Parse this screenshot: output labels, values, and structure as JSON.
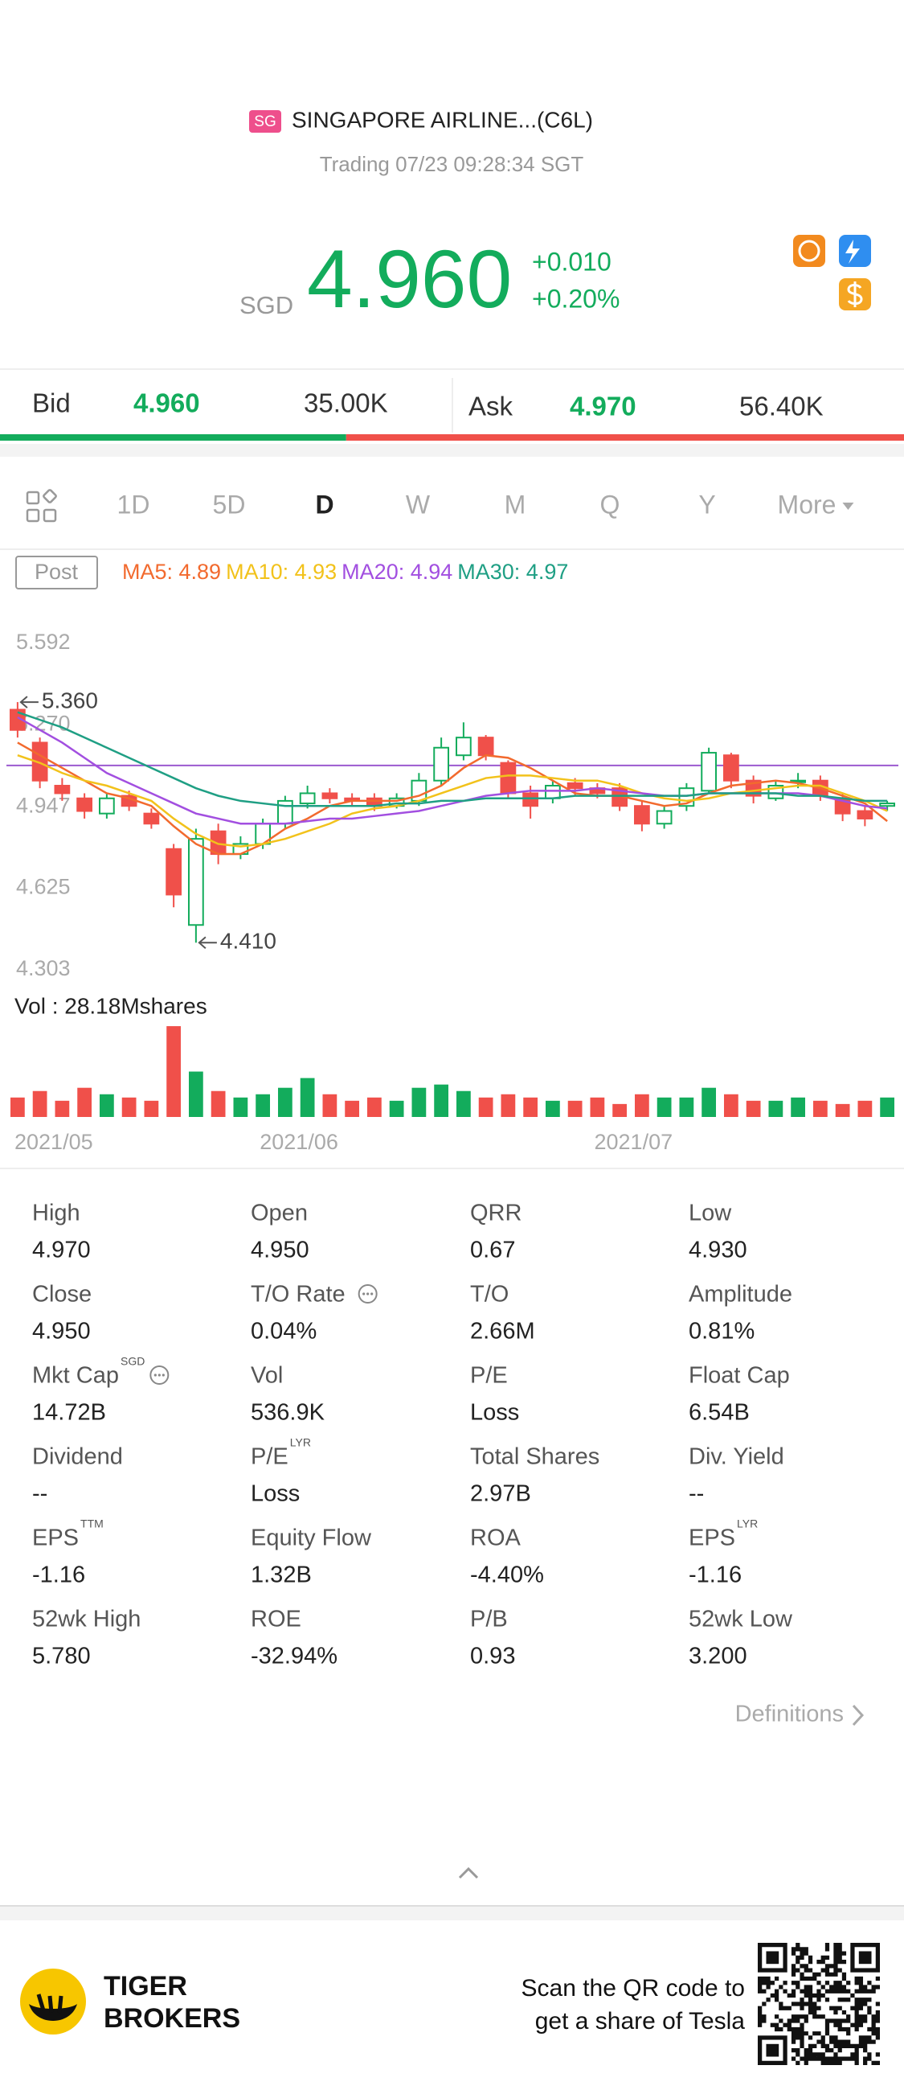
{
  "header": {
    "market_badge": "SG",
    "name": "SINGAPORE AIRLINE...(C6L)",
    "status": "Trading 07/23 09:28:34 SGT",
    "currency": "SGD",
    "price": "4.960",
    "change": "+0.010",
    "change_pct": "+0.20%"
  },
  "quote": {
    "bid_label": "Bid",
    "bid": "4.960",
    "bid_size": {
      "value": 35000,
      "label": "35.00K"
    },
    "ask_label": "Ask",
    "ask": "4.970",
    "ask_size": {
      "value": 56400,
      "label": "56.40K"
    }
  },
  "tabs": [
    "1D",
    "5D",
    "D",
    "W",
    "M",
    "Q",
    "Y",
    "More"
  ],
  "active_tab": 2,
  "post_badge": "Post",
  "chart_data": [
    {
      "type": "candlestick",
      "categories": [
        "2021/05",
        null,
        null,
        null,
        null,
        null,
        null,
        null,
        null,
        null,
        null,
        "2021/06",
        null,
        null,
        null,
        null,
        null,
        null,
        null,
        null,
        null,
        null,
        null,
        null,
        null,
        null,
        "2021/07",
        null,
        null,
        null,
        null,
        null,
        null,
        null,
        null,
        null,
        null,
        null,
        null,
        null
      ],
      "open": [
        5.33,
        5.2,
        5.03,
        4.98,
        4.92,
        4.99,
        4.92,
        4.78,
        4.48,
        4.85,
        4.76,
        4.8,
        4.88,
        4.96,
        5.0,
        4.98,
        4.98,
        4.95,
        4.97,
        5.05,
        5.15,
        5.22,
        5.12,
        5.0,
        4.98,
        5.04,
        5.02,
        5.02,
        4.95,
        4.88,
        4.95,
        5.01,
        5.15,
        5.05,
        4.98,
        5.05,
        5.05,
        4.98,
        4.93,
        4.95
      ],
      "high": [
        5.36,
        5.22,
        5.06,
        5.0,
        5.0,
        5.01,
        4.94,
        4.8,
        4.86,
        4.88,
        4.83,
        4.9,
        4.99,
        5.03,
        5.02,
        5.0,
        5.0,
        5.0,
        5.08,
        5.22,
        5.28,
        5.23,
        5.13,
        5.03,
        5.05,
        5.06,
        5.04,
        5.04,
        4.97,
        4.95,
        5.04,
        5.18,
        5.16,
        5.07,
        5.05,
        5.08,
        5.07,
        5.0,
        4.95,
        4.97
      ],
      "low": [
        5.22,
        5.02,
        4.97,
        4.9,
        4.9,
        4.93,
        4.86,
        4.55,
        4.41,
        4.72,
        4.74,
        4.78,
        4.86,
        4.94,
        4.96,
        4.95,
        4.93,
        4.94,
        4.95,
        5.03,
        5.13,
        5.13,
        4.98,
        4.9,
        4.96,
        4.99,
        4.98,
        4.93,
        4.85,
        4.86,
        4.93,
        5.0,
        5.02,
        4.96,
        4.97,
        5.02,
        4.97,
        4.89,
        4.87,
        4.93
      ],
      "close": [
        5.25,
        5.05,
        5.0,
        4.93,
        4.98,
        4.95,
        4.88,
        4.6,
        4.82,
        4.76,
        4.8,
        4.88,
        4.97,
        5.0,
        4.98,
        4.97,
        4.95,
        4.98,
        5.05,
        5.18,
        5.22,
        5.15,
        5.0,
        4.95,
        5.03,
        5.02,
        5.0,
        4.95,
        4.88,
        4.93,
        5.02,
        5.16,
        5.05,
        4.99,
        5.03,
        5.05,
        4.99,
        4.92,
        4.9,
        4.96
      ],
      "up_color": "#13ac5c",
      "down_color": "#f0504a",
      "series": [
        {
          "name": "MA5: 4.89",
          "color": "#f26a2e",
          "values": [
            5.2,
            5.15,
            5.1,
            5.05,
            5.0,
            4.98,
            4.95,
            4.87,
            4.8,
            4.76,
            4.76,
            4.8,
            4.86,
            4.9,
            4.95,
            4.97,
            4.97,
            4.97,
            4.99,
            5.03,
            5.1,
            5.15,
            5.14,
            5.1,
            5.05,
            5.0,
            4.99,
            4.99,
            4.97,
            4.95,
            4.96,
            5.0,
            5.03,
            5.04,
            5.05,
            5.04,
            5.02,
            4.99,
            4.96,
            4.89
          ]
        },
        {
          "name": "MA10: 4.93",
          "color": "#f2c21b",
          "values": [
            5.15,
            5.12,
            5.08,
            5.05,
            5.03,
            5.0,
            4.97,
            4.9,
            4.84,
            4.8,
            4.79,
            4.8,
            4.82,
            4.85,
            4.88,
            4.92,
            4.94,
            4.95,
            4.97,
            5.0,
            5.03,
            5.06,
            5.07,
            5.07,
            5.06,
            5.05,
            5.05,
            5.03,
            5.0,
            4.98,
            4.97,
            4.98,
            5.0,
            5.01,
            5.02,
            5.03,
            5.03,
            5.0,
            4.97,
            4.93
          ]
        },
        {
          "name": "MA20: 4.94",
          "color": "#a24fe0",
          "values": [
            5.3,
            5.25,
            5.2,
            5.14,
            5.08,
            5.04,
            5.0,
            4.96,
            4.92,
            4.9,
            4.88,
            4.88,
            4.88,
            4.89,
            4.9,
            4.9,
            4.91,
            4.92,
            4.93,
            4.95,
            4.97,
            4.99,
            5.0,
            5.01,
            5.01,
            5.01,
            5.02,
            5.01,
            5.0,
            4.99,
            4.99,
            5.0,
            5.0,
            5.0,
            5.0,
            5.0,
            4.99,
            4.97,
            4.95,
            4.94
          ]
        },
        {
          "name": "MA30: 4.97",
          "color": "#1f9f84",
          "values": [
            5.32,
            5.29,
            5.26,
            5.22,
            5.18,
            5.14,
            5.1,
            5.06,
            5.02,
            4.99,
            4.97,
            4.96,
            4.95,
            4.95,
            4.95,
            4.95,
            4.95,
            4.96,
            4.96,
            4.97,
            4.97,
            4.98,
            4.98,
            4.98,
            4.98,
            4.99,
            4.99,
            4.99,
            4.99,
            4.99,
            4.99,
            5.0,
            5.0,
            5.0,
            5.0,
            4.99,
            4.99,
            4.98,
            4.97,
            4.97
          ]
        }
      ],
      "ylim": [
        4.303,
        5.592
      ],
      "yticks": [
        5.592,
        {
          "value": 5.27,
          "label": "5.270"
        },
        4.947,
        4.625,
        4.303
      ],
      "grid": false,
      "hline": 5.11,
      "hline_color": "#9b59d0",
      "annotations": [
        {
          "index": 0,
          "value": 5.36,
          "label": "5.360"
        },
        {
          "index": 8,
          "value": 4.41,
          "label": "4.410"
        }
      ]
    },
    {
      "type": "bar",
      "title": "Vol  : 28.18Mshares",
      "values": [
        6,
        8,
        5,
        9,
        7,
        6,
        5,
        28,
        14,
        8,
        6,
        7,
        9,
        12,
        7,
        5,
        6,
        5,
        9,
        10,
        8,
        6,
        7,
        6,
        5,
        5,
        6,
        4,
        7,
        6,
        6,
        9,
        7,
        5,
        5,
        6,
        5,
        4,
        5,
        6
      ],
      "ylim": [
        0,
        30
      ]
    }
  ],
  "stats": [
    {
      "label": "High",
      "value": "4.970"
    },
    {
      "label": "Open",
      "value": "4.950"
    },
    {
      "label": "QRR",
      "value": "0.67"
    },
    {
      "label": "Low",
      "value": "4.930"
    },
    {
      "label": "Close",
      "value": "4.950"
    },
    {
      "label": "T/O Rate",
      "value": "0.04%",
      "info": true
    },
    {
      "label": "T/O",
      "value": "2.66M"
    },
    {
      "label": "Amplitude",
      "value": "0.81%"
    },
    {
      "label": "Mkt Cap",
      "sup": "SGD",
      "value": "14.72B",
      "info": true
    },
    {
      "label": "Vol",
      "value": "536.9K"
    },
    {
      "label": "P/E",
      "value": "Loss"
    },
    {
      "label": "Float Cap",
      "value": "6.54B"
    },
    {
      "label": "Dividend",
      "value": "--"
    },
    {
      "label": "P/E",
      "sup": "LYR",
      "value": "Loss"
    },
    {
      "label": "Total Shares",
      "value": "2.97B"
    },
    {
      "label": "Div. Yield",
      "value": "--"
    },
    {
      "label": "EPS",
      "sup": "TTM",
      "value": "-1.16"
    },
    {
      "label": "Equity Flow",
      "value": "1.32B"
    },
    {
      "label": "ROA",
      "value": "-4.40%"
    },
    {
      "label": "EPS",
      "sup": "LYR",
      "value": "-1.16"
    },
    {
      "label": "52wk High",
      "value": "5.780"
    },
    {
      "label": "ROE",
      "value": "-32.94%"
    },
    {
      "label": "P/B",
      "value": "0.93"
    },
    {
      "label": "52wk Low",
      "value": "3.200"
    }
  ],
  "definitions": "Definitions",
  "footer": {
    "brand_line1": "TIGER",
    "brand_line2": "BROKERS",
    "promo_line1": "Scan the QR code to",
    "promo_line2": "get a share of Tesla"
  }
}
